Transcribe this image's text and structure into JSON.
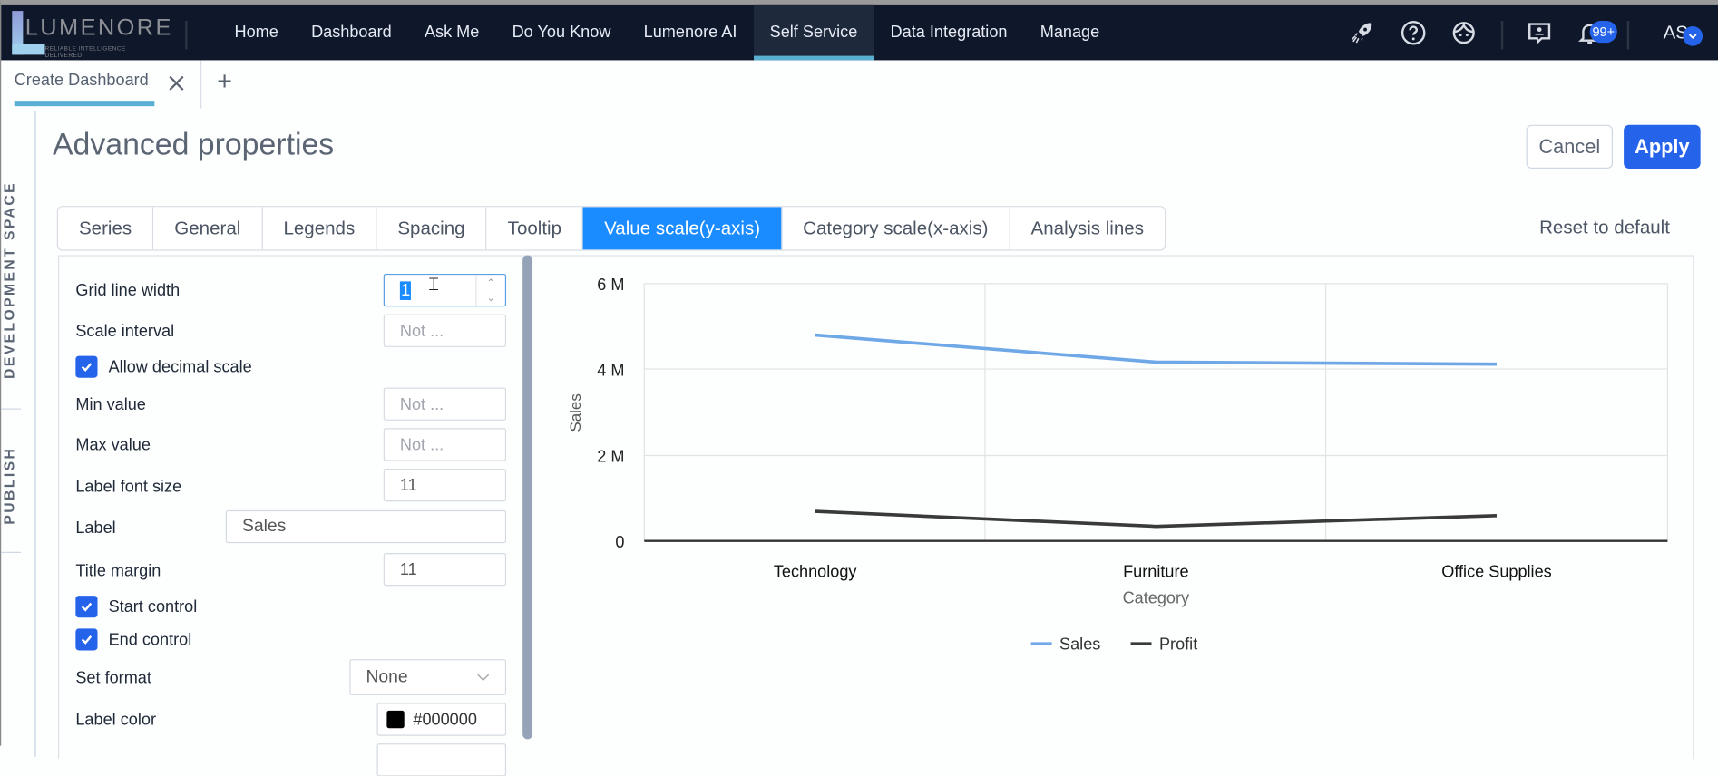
{
  "app": {
    "logo_text": "LUMENORE",
    "logo_tagline": "RELIABLE INTELLIGENCE DELIVERED"
  },
  "nav": {
    "items": [
      {
        "label": "Home"
      },
      {
        "label": "Dashboard"
      },
      {
        "label": "Ask Me"
      },
      {
        "label": "Do You Know"
      },
      {
        "label": "Lumenore AI"
      },
      {
        "label": "Self Service",
        "active": true
      },
      {
        "label": "Data Integration"
      },
      {
        "label": "Manage"
      }
    ],
    "icons": [
      "rocket-icon",
      "help-icon",
      "support-agent-icon",
      "feedback-icon",
      "bell-icon"
    ],
    "notification_count": "99+",
    "user_initials": "AS"
  },
  "doc_tabs": {
    "active_tab": "Create Dashboard",
    "add_label": "+"
  },
  "left_rail": {
    "development_space": "DEVELOPMENT SPACE",
    "publish": "PUBLISH"
  },
  "page": {
    "title": "Advanced properties",
    "cancel_label": "Cancel",
    "apply_label": "Apply",
    "reset_label": "Reset to default"
  },
  "property_tabs": [
    {
      "label": "Series"
    },
    {
      "label": "General"
    },
    {
      "label": "Legends"
    },
    {
      "label": "Spacing"
    },
    {
      "label": "Tooltip"
    },
    {
      "label": "Value scale(y-axis)",
      "active": true
    },
    {
      "label": "Category scale(x-axis)"
    },
    {
      "label": "Analysis lines"
    }
  ],
  "properties": {
    "grid_line_width": {
      "label": "Grid line width",
      "value": "1"
    },
    "scale_interval": {
      "label": "Scale interval",
      "placeholder": "Not ..."
    },
    "allow_decimal_scale": {
      "label": "Allow decimal scale",
      "checked": true
    },
    "min_value": {
      "label": "Min value",
      "placeholder": "Not ..."
    },
    "max_value": {
      "label": "Max value",
      "placeholder": "Not ..."
    },
    "label_font_size": {
      "label": "Label font size",
      "value": "11"
    },
    "label": {
      "label": "Label",
      "value": "Sales"
    },
    "title_margin": {
      "label": "Title margin",
      "value": "11"
    },
    "start_control": {
      "label": "Start control",
      "checked": true
    },
    "end_control": {
      "label": "End control",
      "checked": true
    },
    "set_format": {
      "label": "Set format",
      "value": "None"
    },
    "label_color": {
      "label": "Label color",
      "value": "#000000"
    }
  },
  "chart_data": {
    "type": "line",
    "title": "",
    "categories": [
      "Technology",
      "Furniture",
      "Office Supplies"
    ],
    "series": [
      {
        "name": "Sales",
        "color": "#6fa8e6",
        "values": [
          4800000,
          4170000,
          4120000
        ]
      },
      {
        "name": "Profit",
        "color": "#3a3a3a",
        "values": [
          690000,
          340000,
          590000
        ]
      }
    ],
    "xlabel": "Category",
    "ylabel": "Sales",
    "ylim": [
      0,
      6000000
    ],
    "yticks": [
      "0",
      "2 M",
      "4 M",
      "6 M"
    ],
    "grid": true,
    "legend_position": "bottom"
  }
}
